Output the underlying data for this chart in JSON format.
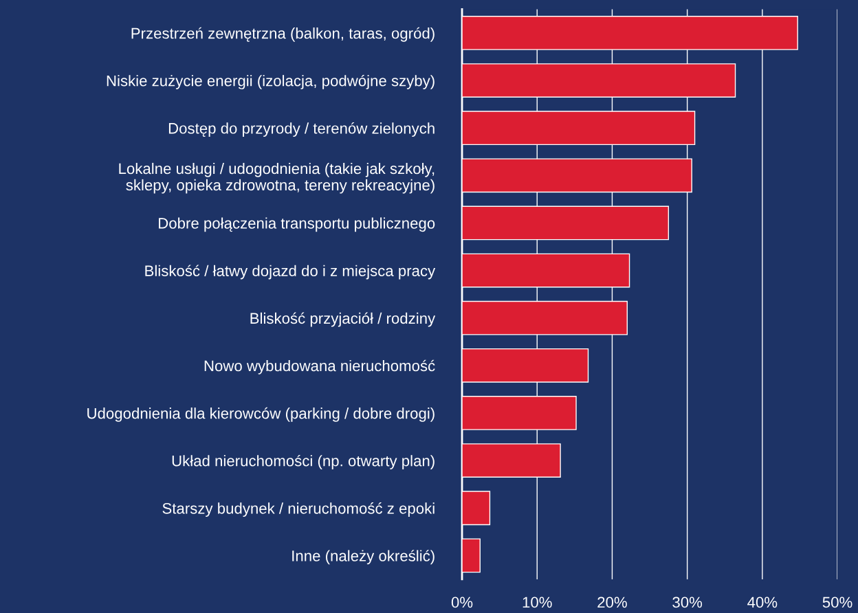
{
  "chart_data": {
    "type": "bar",
    "orientation": "horizontal",
    "categories": [
      "Przestrzeń zewnętrzna (balkon, taras, ogród)",
      "Niskie zużycie energii (izolacja, podwójne szyby)",
      "Dostęp do przyrody / terenów zielonych",
      "Lokalne usługi / udogodnienia (takie jak szkoły,\nsklepy, opieka zdrowotna, tereny rekreacyjne)",
      "Dobre połączenia transportu publicznego",
      "Bliskość / łatwy dojazd do i z miejsca pracy",
      "Bliskość przyjaciół / rodziny",
      "Nowo wybudowana nieruchomość",
      "Udogodnienia dla kierowców (parking / dobre drogi)",
      "Układ nieruchomości (np. otwarty plan)",
      "Starszy budynek / nieruchomość z epoki",
      "Inne (należy określić)"
    ],
    "values": [
      44.7,
      36.4,
      31.0,
      30.6,
      27.5,
      22.3,
      22.0,
      16.8,
      15.2,
      13.1,
      3.7,
      2.4
    ],
    "color": "#dc1e32",
    "xlim": [
      0,
      50
    ],
    "xticks": [
      {
        "value": 0,
        "label": "0%"
      },
      {
        "value": 10,
        "label": "10%"
      },
      {
        "value": 20,
        "label": "20%"
      },
      {
        "value": 30,
        "label": "30%"
      },
      {
        "value": 40,
        "label": "40%"
      },
      {
        "value": 50,
        "label": "50%"
      }
    ],
    "grid": "x"
  }
}
